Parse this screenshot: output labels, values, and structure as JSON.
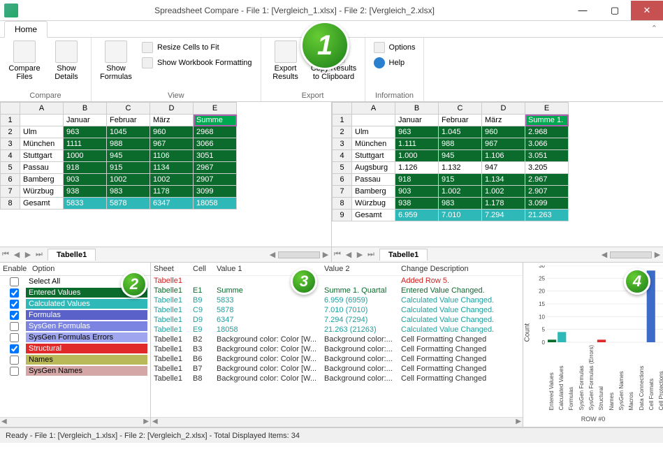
{
  "window": {
    "title": "Spreadsheet Compare - File 1: [Vergleich_1.xlsx] - File 2: [Vergleich_2.xlsx]"
  },
  "ribbon": {
    "tabs": [
      "Home"
    ],
    "groups": {
      "compare": {
        "label": "Compare",
        "compare_files": "Compare\nFiles",
        "show_details": "Show\nDetails"
      },
      "view": {
        "label": "View",
        "show_formulas": "Show\nFormulas",
        "resize": "Resize Cells to Fit",
        "wb_format": "Show Workbook Formatting"
      },
      "export": {
        "label": "Export",
        "export_results": "Export\nResults",
        "copy_clip": "Copy Results\nto Clipboard"
      },
      "info": {
        "label": "Information",
        "options": "Options",
        "help": "Help"
      }
    }
  },
  "left_grid": {
    "col_headers": [
      "A",
      "B",
      "C",
      "D",
      "E"
    ],
    "tab": "Tabelle1",
    "rows": [
      {
        "n": 1,
        "cells": [
          {
            "t": ""
          },
          {
            "t": "Januar"
          },
          {
            "t": "Februar"
          },
          {
            "t": "März"
          },
          {
            "t": "Summe",
            "bg": "#00a84f",
            "fg": "#fff",
            "border": "#b060b0"
          }
        ]
      },
      {
        "n": 2,
        "cells": [
          {
            "t": "Ulm"
          },
          {
            "t": "963",
            "bg": "#0b6b2d",
            "fg": "#fff"
          },
          {
            "t": "1045",
            "bg": "#0b6b2d",
            "fg": "#fff"
          },
          {
            "t": "960",
            "bg": "#0b6b2d",
            "fg": "#fff"
          },
          {
            "t": "2968",
            "bg": "#0b6b2d",
            "fg": "#fff"
          }
        ]
      },
      {
        "n": 3,
        "cells": [
          {
            "t": "München"
          },
          {
            "t": "1111",
            "bg": "#0b6b2d",
            "fg": "#fff"
          },
          {
            "t": "988",
            "bg": "#0b6b2d",
            "fg": "#fff"
          },
          {
            "t": "967",
            "bg": "#0b6b2d",
            "fg": "#fff"
          },
          {
            "t": "3066",
            "bg": "#0b6b2d",
            "fg": "#fff"
          }
        ]
      },
      {
        "n": 4,
        "cells": [
          {
            "t": "Stuttgart"
          },
          {
            "t": "1000",
            "bg": "#0b6b2d",
            "fg": "#fff"
          },
          {
            "t": "945",
            "bg": "#0b6b2d",
            "fg": "#fff"
          },
          {
            "t": "1106",
            "bg": "#0b6b2d",
            "fg": "#fff"
          },
          {
            "t": "3051",
            "bg": "#0b6b2d",
            "fg": "#fff"
          }
        ]
      },
      {
        "n": 5,
        "cells": [
          {
            "t": "Passau"
          },
          {
            "t": "918",
            "bg": "#0b6b2d",
            "fg": "#fff"
          },
          {
            "t": "915",
            "bg": "#0b6b2d",
            "fg": "#fff"
          },
          {
            "t": "1134",
            "bg": "#0b6b2d",
            "fg": "#fff"
          },
          {
            "t": "2967",
            "bg": "#0b6b2d",
            "fg": "#fff"
          }
        ]
      },
      {
        "n": 6,
        "cells": [
          {
            "t": "Bamberg"
          },
          {
            "t": "903",
            "bg": "#0b6b2d",
            "fg": "#fff"
          },
          {
            "t": "1002",
            "bg": "#0b6b2d",
            "fg": "#fff"
          },
          {
            "t": "1002",
            "bg": "#0b6b2d",
            "fg": "#fff"
          },
          {
            "t": "2907",
            "bg": "#0b6b2d",
            "fg": "#fff"
          }
        ]
      },
      {
        "n": 7,
        "cells": [
          {
            "t": "Würzbug"
          },
          {
            "t": "938",
            "bg": "#0b6b2d",
            "fg": "#fff"
          },
          {
            "t": "983",
            "bg": "#0b6b2d",
            "fg": "#fff"
          },
          {
            "t": "1178",
            "bg": "#0b6b2d",
            "fg": "#fff"
          },
          {
            "t": "3099",
            "bg": "#0b6b2d",
            "fg": "#fff"
          }
        ]
      },
      {
        "n": 8,
        "cells": [
          {
            "t": "Gesamt"
          },
          {
            "t": "5833",
            "bg": "#2fb8b8",
            "fg": "#fff"
          },
          {
            "t": "5878",
            "bg": "#2fb8b8",
            "fg": "#fff"
          },
          {
            "t": "6347",
            "bg": "#2fb8b8",
            "fg": "#fff"
          },
          {
            "t": "18058",
            "bg": "#2fb8b8",
            "fg": "#fff"
          }
        ]
      }
    ]
  },
  "right_grid": {
    "col_headers": [
      "A",
      "B",
      "C",
      "D",
      "E"
    ],
    "tab": "Tabelle1",
    "rows": [
      {
        "n": 1,
        "cells": [
          {
            "t": ""
          },
          {
            "t": "Januar"
          },
          {
            "t": "Februar"
          },
          {
            "t": "März"
          },
          {
            "t": "Summe 1.",
            "bg": "#00a84f",
            "fg": "#fff",
            "border": "#b060b0"
          }
        ]
      },
      {
        "n": 2,
        "cells": [
          {
            "t": "Ulm"
          },
          {
            "t": "963",
            "bg": "#0b6b2d",
            "fg": "#fff"
          },
          {
            "t": "1.045",
            "bg": "#0b6b2d",
            "fg": "#fff"
          },
          {
            "t": "960",
            "bg": "#0b6b2d",
            "fg": "#fff"
          },
          {
            "t": "2.968",
            "bg": "#0b6b2d",
            "fg": "#fff"
          }
        ]
      },
      {
        "n": 3,
        "cells": [
          {
            "t": "München"
          },
          {
            "t": "1.111",
            "bg": "#0b6b2d",
            "fg": "#fff"
          },
          {
            "t": "988",
            "bg": "#0b6b2d",
            "fg": "#fff"
          },
          {
            "t": "967",
            "bg": "#0b6b2d",
            "fg": "#fff"
          },
          {
            "t": "3.066",
            "bg": "#0b6b2d",
            "fg": "#fff"
          }
        ]
      },
      {
        "n": 4,
        "cells": [
          {
            "t": "Stuttgart"
          },
          {
            "t": "1.000",
            "bg": "#0b6b2d",
            "fg": "#fff"
          },
          {
            "t": "945",
            "bg": "#0b6b2d",
            "fg": "#fff"
          },
          {
            "t": "1.106",
            "bg": "#0b6b2d",
            "fg": "#fff"
          },
          {
            "t": "3.051",
            "bg": "#0b6b2d",
            "fg": "#fff"
          }
        ]
      },
      {
        "n": 5,
        "cells": [
          {
            "t": "Augsburg"
          },
          {
            "t": "1.126"
          },
          {
            "t": "1.132"
          },
          {
            "t": "947"
          },
          {
            "t": "3.205"
          }
        ]
      },
      {
        "n": 6,
        "cells": [
          {
            "t": "Passau"
          },
          {
            "t": "918",
            "bg": "#0b6b2d",
            "fg": "#fff"
          },
          {
            "t": "915",
            "bg": "#0b6b2d",
            "fg": "#fff"
          },
          {
            "t": "1.134",
            "bg": "#0b6b2d",
            "fg": "#fff"
          },
          {
            "t": "2.967",
            "bg": "#0b6b2d",
            "fg": "#fff"
          }
        ]
      },
      {
        "n": 7,
        "cells": [
          {
            "t": "Bamberg"
          },
          {
            "t": "903",
            "bg": "#0b6b2d",
            "fg": "#fff"
          },
          {
            "t": "1.002",
            "bg": "#0b6b2d",
            "fg": "#fff"
          },
          {
            "t": "1.002",
            "bg": "#0b6b2d",
            "fg": "#fff"
          },
          {
            "t": "2.907",
            "bg": "#0b6b2d",
            "fg": "#fff"
          }
        ]
      },
      {
        "n": 8,
        "cells": [
          {
            "t": "Würzbug"
          },
          {
            "t": "938",
            "bg": "#0b6b2d",
            "fg": "#fff"
          },
          {
            "t": "983",
            "bg": "#0b6b2d",
            "fg": "#fff"
          },
          {
            "t": "1.178",
            "bg": "#0b6b2d",
            "fg": "#fff"
          },
          {
            "t": "3.099",
            "bg": "#0b6b2d",
            "fg": "#fff"
          }
        ]
      },
      {
        "n": 9,
        "cells": [
          {
            "t": "Gesamt"
          },
          {
            "t": "6.959",
            "bg": "#2fb8b8",
            "fg": "#fff"
          },
          {
            "t": "7.010",
            "bg": "#2fb8b8",
            "fg": "#fff"
          },
          {
            "t": "7.294",
            "bg": "#2fb8b8",
            "fg": "#fff"
          },
          {
            "t": "21.263",
            "bg": "#2fb8b8",
            "fg": "#fff"
          }
        ]
      }
    ]
  },
  "options": {
    "hdr_enable": "Enable",
    "hdr_option": "Option",
    "rows": [
      {
        "checked": false,
        "label": "Select All",
        "bg": "#ffffff",
        "fg": "#000"
      },
      {
        "checked": true,
        "label": "Entered Values",
        "bg": "#0b6b2d",
        "fg": "#fff"
      },
      {
        "checked": true,
        "label": "Calculated Values",
        "bg": "#2fb8b8",
        "fg": "#fff"
      },
      {
        "checked": true,
        "label": "Formulas",
        "bg": "#5a62c9",
        "fg": "#fff"
      },
      {
        "checked": false,
        "label": "SysGen Formulas",
        "bg": "#7b84e0",
        "fg": "#fff"
      },
      {
        "checked": false,
        "label": "SysGen Formulas Errors",
        "bg": "#9fa6ef",
        "fg": "#000"
      },
      {
        "checked": true,
        "label": "Structural",
        "bg": "#e02a2a",
        "fg": "#fff"
      },
      {
        "checked": false,
        "label": "Names",
        "bg": "#b9b95a",
        "fg": "#000"
      },
      {
        "checked": false,
        "label": "SysGen Names",
        "bg": "#d4a6a6",
        "fg": "#000"
      }
    ]
  },
  "diff": {
    "hdr": {
      "sheet": "Sheet",
      "cell": "Cell",
      "v1": "Value 1",
      "v2": "Value 2",
      "desc": "Change Description"
    },
    "rows": [
      {
        "sheet": "Tabelle1",
        "cell": "",
        "v1": "",
        "v2": "",
        "desc": "Added Row 5.",
        "color": "#d01c1c"
      },
      {
        "sheet": "Tabelle1",
        "cell": "E1",
        "v1": "Summe",
        "v2": "Summe 1. Quartal",
        "desc": "Entered Value Changed.",
        "color": "#0b6b2d"
      },
      {
        "sheet": "Tabelle1",
        "cell": "B9",
        "v1": "5833",
        "v2": "6.959   (6959)",
        "desc": "Calculated Value Changed.",
        "color": "#1f9e9e"
      },
      {
        "sheet": "Tabelle1",
        "cell": "C9",
        "v1": "5878",
        "v2": "7.010   (7010)",
        "desc": "Calculated Value Changed.",
        "color": "#1f9e9e"
      },
      {
        "sheet": "Tabelle1",
        "cell": "D9",
        "v1": "6347",
        "v2": "7.294   (7294)",
        "desc": "Calculated Value Changed.",
        "color": "#1f9e9e"
      },
      {
        "sheet": "Tabelle1",
        "cell": "E9",
        "v1": "18058",
        "v2": "21.263   (21263)",
        "desc": "Calculated Value Changed.",
        "color": "#1f9e9e"
      },
      {
        "sheet": "Tabelle1",
        "cell": "B2",
        "v1": "Background color: Color [W...",
        "v2": "Background color:...",
        "desc": "Cell Formatting Changed",
        "color": "#333"
      },
      {
        "sheet": "Tabelle1",
        "cell": "B3",
        "v1": "Background color: Color [W...",
        "v2": "Background color:...",
        "desc": "Cell Formatting Changed",
        "color": "#333"
      },
      {
        "sheet": "Tabelle1",
        "cell": "B6",
        "v1": "Background color: Color [W...",
        "v2": "Background color:...",
        "desc": "Cell Formatting Changed",
        "color": "#333"
      },
      {
        "sheet": "Tabelle1",
        "cell": "B7",
        "v1": "Background color: Color [W...",
        "v2": "Background color:...",
        "desc": "Cell Formatting Changed",
        "color": "#333"
      },
      {
        "sheet": "Tabelle1",
        "cell": "B8",
        "v1": "Background color: Color [W...",
        "v2": "Background color:...",
        "desc": "Cell Formatting Changed",
        "color": "#333"
      }
    ]
  },
  "chart": {
    "ylabel": "Count",
    "ymax": 30,
    "ytick_step": 5,
    "yticks": [
      0,
      5,
      10,
      15,
      20,
      25,
      30
    ],
    "bars": [
      {
        "label": "Entered Values",
        "v": 1,
        "color": "#0b6b2d"
      },
      {
        "label": "Calculated Values",
        "v": 4,
        "color": "#2fb8b8"
      },
      {
        "label": "Formulas",
        "v": 0,
        "color": "#5a62c9"
      },
      {
        "label": "SysGen Formulas",
        "v": 0,
        "color": "#7b84e0"
      },
      {
        "label": "SysGen Formulas (Errors)",
        "v": 0,
        "color": "#9fa6ef"
      },
      {
        "label": "Structural",
        "v": 1,
        "color": "#e02a2a"
      },
      {
        "label": "Names",
        "v": 0,
        "color": "#b9b95a"
      },
      {
        "label": "SysGen Names",
        "v": 0,
        "color": "#d4a6a6"
      },
      {
        "label": "Macros",
        "v": 0,
        "color": "#888"
      },
      {
        "label": "Data Connections",
        "v": 0,
        "color": "#888"
      },
      {
        "label": "Cell Formats",
        "v": 28,
        "color": "#3c6cc8"
      },
      {
        "label": "Cell Protections",
        "v": 0,
        "color": "#888"
      }
    ],
    "xlabel": "ROW #0"
  },
  "status": "Ready - File 1: [Vergleich_1.xlsx] - File 2: [Vergleich_2.xlsx] - Total Displayed Items: 34",
  "badges": {
    "b1": "1",
    "b2": "2",
    "b3": "3",
    "b4": "4"
  }
}
